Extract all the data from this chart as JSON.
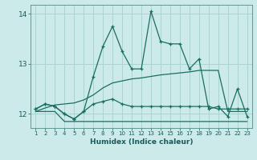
{
  "title": "",
  "xlabel": "Humidex (Indice chaleur)",
  "bg_color": "#cceae7",
  "grid_color": "#aad4d0",
  "line_color": "#1a6e60",
  "x": [
    1,
    2,
    3,
    4,
    5,
    6,
    7,
    8,
    9,
    10,
    11,
    12,
    13,
    14,
    15,
    16,
    17,
    18,
    19,
    20,
    21,
    22,
    23
  ],
  "line1": [
    12.1,
    12.2,
    12.15,
    12.0,
    11.9,
    12.05,
    12.75,
    13.35,
    13.75,
    13.25,
    12.9,
    12.9,
    14.05,
    13.45,
    13.4,
    13.4,
    12.9,
    13.1,
    12.1,
    12.15,
    11.95,
    12.5,
    11.95
  ],
  "line2": [
    12.1,
    12.2,
    12.15,
    12.0,
    11.9,
    12.05,
    12.2,
    12.25,
    12.3,
    12.2,
    12.15,
    12.15,
    12.15,
    12.15,
    12.15,
    12.15,
    12.15,
    12.15,
    12.15,
    12.1,
    12.1,
    12.1,
    12.1
  ],
  "line3": [
    12.05,
    12.05,
    12.05,
    11.85,
    11.85,
    11.85,
    11.85,
    11.85,
    11.85,
    11.85,
    11.85,
    11.85,
    11.85,
    11.85,
    11.85,
    11.85,
    11.85,
    11.85,
    11.85,
    11.85,
    11.85,
    11.85,
    11.85
  ],
  "line4": [
    12.05,
    12.12,
    12.18,
    12.2,
    12.22,
    12.28,
    12.38,
    12.52,
    12.62,
    12.66,
    12.7,
    12.72,
    12.75,
    12.78,
    12.8,
    12.82,
    12.84,
    12.87,
    12.87,
    12.87,
    12.05,
    12.05,
    12.05
  ],
  "ylim": [
    11.72,
    14.18
  ],
  "yticks": [
    12,
    13,
    14
  ],
  "xtick_fontsize": 5.0,
  "ytick_fontsize": 6.5,
  "xlabel_fontsize": 6.5
}
